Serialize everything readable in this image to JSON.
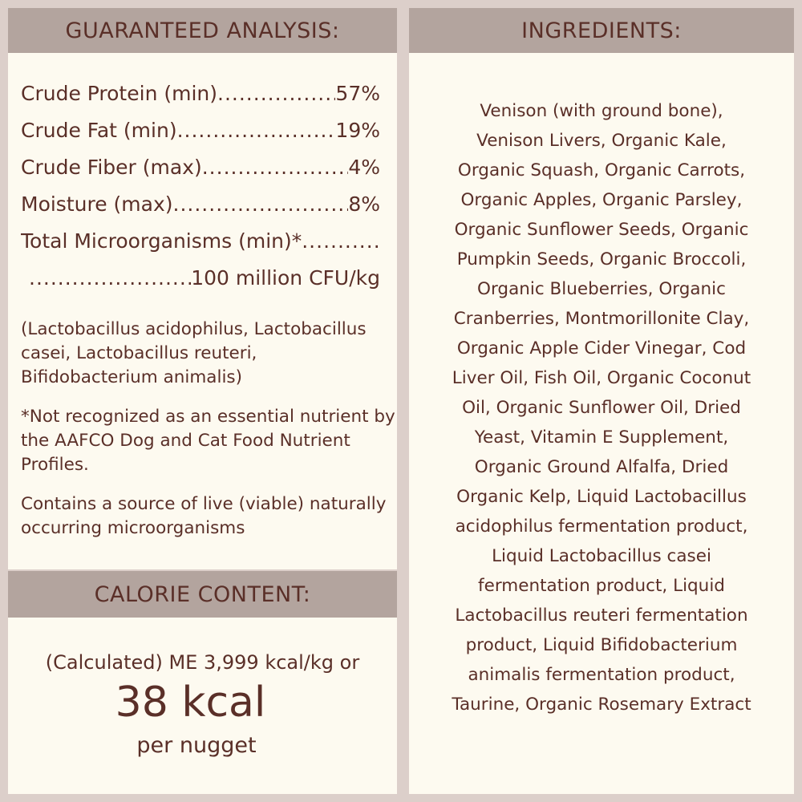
{
  "analysis": {
    "title": "GUARANTEED ANALYSIS:",
    "rows": [
      {
        "label": "Crude Protein (min)",
        "value": "57%"
      },
      {
        "label": "Crude Fat (min)",
        "value": "19%"
      },
      {
        "label": "Crude Fiber (max)",
        "value": "4%"
      },
      {
        "label": "Moisture (max)",
        "value": "8%"
      },
      {
        "label": "Total Microorganisms (min)*",
        "value": ""
      },
      {
        "label": "",
        "value": "100 million CFU/kg"
      }
    ],
    "strains": "(Lactobacillus acidophilus, Lactobacillus casei, Lactobacillus reuteri, Bifidobacterium animalis)",
    "footnote": "*Not recognized as an essential nutrient by the AAFCO Dog and Cat Food Nutrient Profiles.",
    "live_note": "Contains a source of live (viable) naturally occurring microorganisms"
  },
  "calorie": {
    "title": "CALORIE CONTENT:",
    "line1": "(Calculated) ME 3,999 kcal/kg or",
    "big": "38 kcal",
    "line3": "per nugget"
  },
  "ingredients": {
    "title": "INGREDIENTS:",
    "lines": [
      "Venison (with ground bone),",
      "Venison Livers, Organic Kale,",
      "Organic Squash, Organic Carrots,",
      "Organic Apples, Organic Parsley,",
      "Organic Sunflower Seeds, Organic",
      "Pumpkin Seeds, Organic Broccoli,",
      "Organic Blueberries, Organic",
      "Cranberries, Montmorillonite Clay,",
      "Organic Apple Cider Vinegar, Cod",
      "Liver Oil, Fish Oil, Organic Coconut",
      "Oil, Organic Sunflower Oil, Dried",
      "Yeast, Vitamin E Supplement,",
      "Organic Ground Alfalfa, Dried",
      "Organic Kelp, Liquid Lactobacillus",
      "acidophilus fermentation product,",
      "Liquid Lactobacillus casei",
      "fermentation product, Liquid",
      "Lactobacillus reuteri fermentation",
      "product, Liquid Bifidobacterium",
      "animalis fermentation product,",
      "Taurine, Organic Rosemary Extract"
    ]
  },
  "colors": {
    "background": "#dccfca",
    "header": "#b3a49e",
    "panel": "#fdfaf0",
    "text": "#5a2f28"
  }
}
